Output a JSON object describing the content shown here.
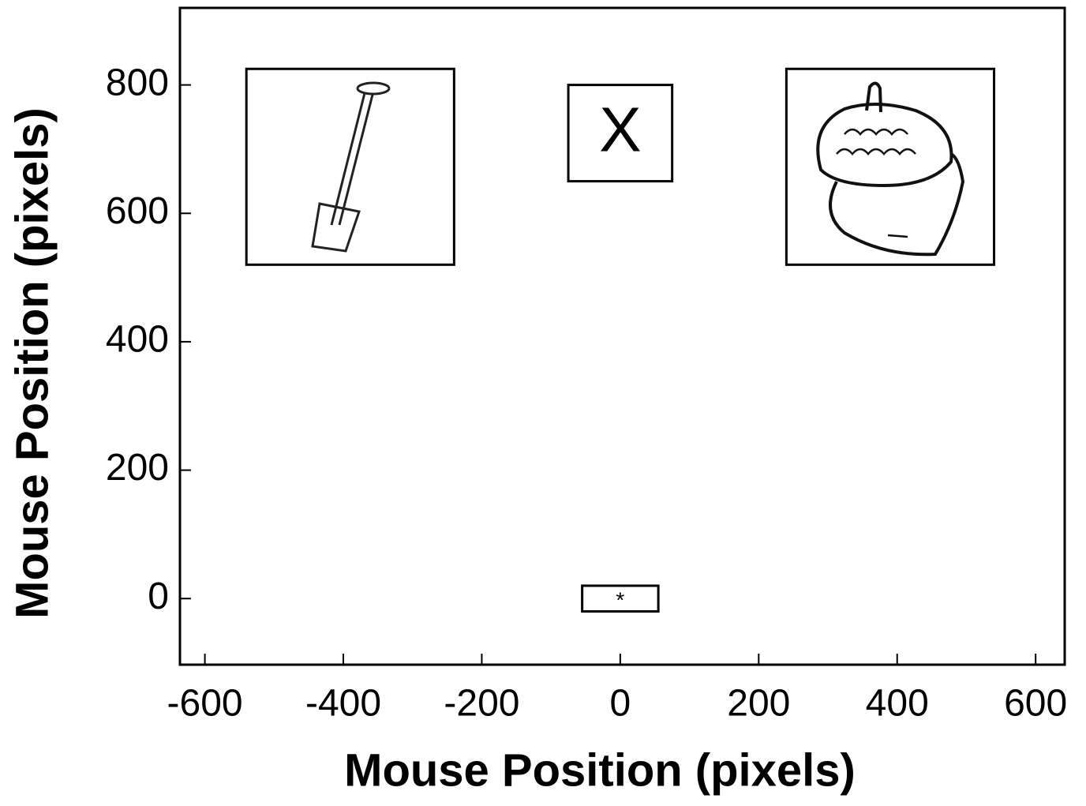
{
  "chart_data": {
    "type": "regions",
    "x_label": "Mouse Position (pixels)",
    "y_label": "Mouse Position (pixels)",
    "xlim": [
      -636,
      642
    ],
    "ylim": [
      -103,
      920
    ],
    "xticks": [
      -600,
      -400,
      -200,
      0,
      200,
      400,
      600
    ],
    "yticks": [
      0,
      200,
      400,
      600,
      800
    ],
    "regions": [
      {
        "x": [
          -540,
          -240
        ],
        "y": [
          520,
          825
        ]
      },
      {
        "x": [
          -75,
          75
        ],
        "y": [
          650,
          800
        ],
        "label": "X"
      },
      {
        "x": [
          240,
          540
        ],
        "y": [
          520,
          825
        ]
      },
      {
        "x": [
          -55,
          55
        ],
        "y": [
          -20,
          20
        ],
        "label": "*"
      }
    ]
  }
}
